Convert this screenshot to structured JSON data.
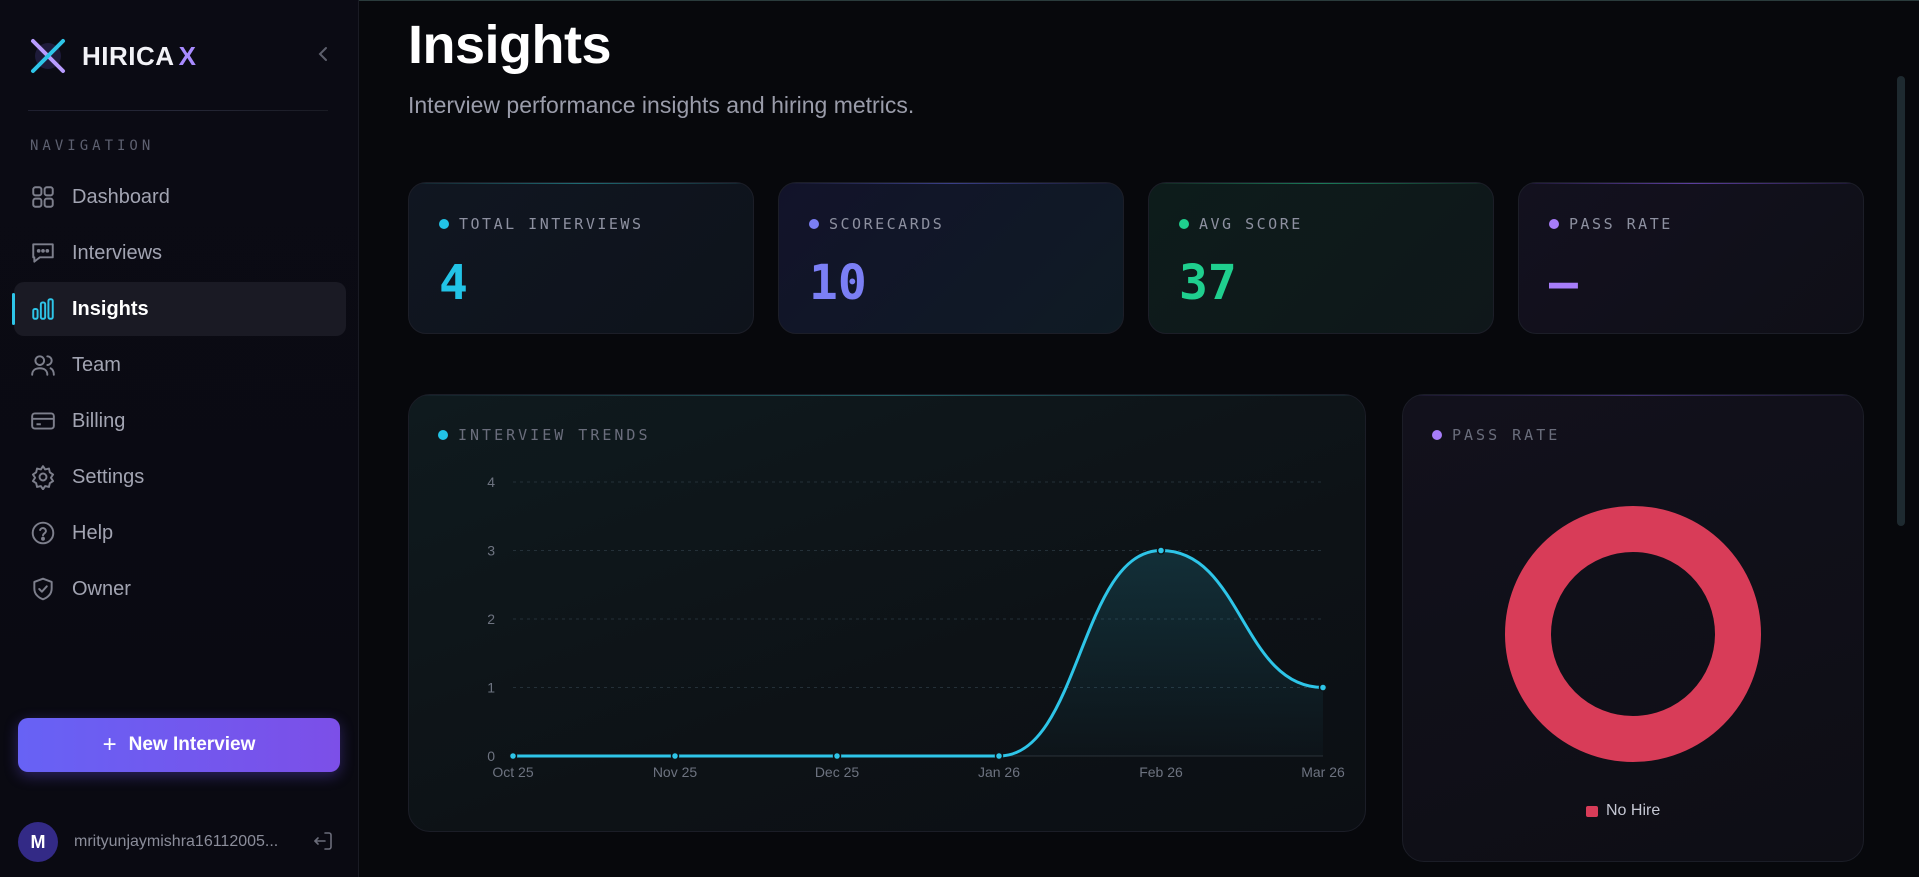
{
  "brand": {
    "name": "HIRICA",
    "mark": "X",
    "logo_icon": "brand-x-logo-icon"
  },
  "sidebar": {
    "heading": "NAVIGATION",
    "items": [
      {
        "label": "Dashboard",
        "icon": "grid-icon",
        "active": false
      },
      {
        "label": "Interviews",
        "icon": "chat-icon",
        "active": false
      },
      {
        "label": "Insights",
        "icon": "bar-chart-icon",
        "active": true
      },
      {
        "label": "Team",
        "icon": "users-icon",
        "active": false
      },
      {
        "label": "Billing",
        "icon": "credit-card-icon",
        "active": false
      },
      {
        "label": "Settings",
        "icon": "gear-icon",
        "active": false
      },
      {
        "label": "Help",
        "icon": "help-circle-icon",
        "active": false
      },
      {
        "label": "Owner",
        "icon": "shield-check-icon",
        "active": false
      }
    ],
    "new_button": {
      "icon": "+",
      "label": "New Interview"
    },
    "user": {
      "initial": "M",
      "email": "mrityunjaymishra16112005..."
    }
  },
  "page": {
    "title": "Insights",
    "subtitle": "Interview performance insights and hiring metrics."
  },
  "stats": [
    {
      "label": "TOTAL INTERVIEWS",
      "value": "4",
      "color": "#22c3e6"
    },
    {
      "label": "SCORECARDS",
      "value": "10",
      "color": "#7b7ff5"
    },
    {
      "label": "AVG SCORE",
      "value": "37",
      "color": "#1fcf8e"
    },
    {
      "label": "PASS RATE",
      "value": "–",
      "color": "#a77dfa"
    }
  ],
  "trends_panel": {
    "label": "INTERVIEW TRENDS",
    "color": "#22c3e6"
  },
  "pass_rate_panel": {
    "label": "PASS RATE",
    "color": "#a77dfa"
  },
  "colors": {
    "accent_cyan": "#2ec5e8",
    "accent_purple": "#7c4fe8",
    "no_hire": "#d83c58"
  },
  "chart_data": [
    {
      "type": "line",
      "title": "INTERVIEW TRENDS",
      "x": [
        "Oct 25",
        "Nov 25",
        "Dec 25",
        "Jan 26",
        "Feb 26",
        "Mar 26"
      ],
      "series": [
        {
          "values": [
            0,
            0,
            0,
            0,
            3,
            1
          ]
        }
      ],
      "yticks": [
        "0",
        "1",
        "2",
        "3",
        "4"
      ],
      "ylim": [
        0,
        4
      ],
      "grid": true,
      "color": "#2ec5e8"
    },
    {
      "type": "pie",
      "title": "PASS RATE",
      "categories": [
        "No Hire"
      ],
      "values": [
        1
      ],
      "colors": [
        "#d83c58"
      ],
      "legend": "bottom"
    }
  ]
}
